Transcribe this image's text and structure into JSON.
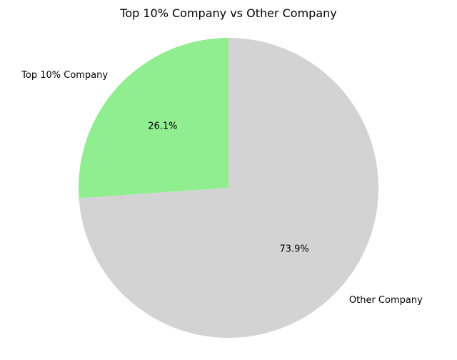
{
  "chart_data": {
    "type": "pie",
    "title": "Top 10% Company vs Other Company",
    "categories": [
      "Top 10% Company",
      "Other Company"
    ],
    "values": [
      26.1,
      73.9
    ],
    "value_labels": [
      "26.1%",
      "73.9%"
    ],
    "colors": [
      "#90ee90",
      "#d3d3d3"
    ],
    "start_angle_deg": 90,
    "direction": "counterclockwise",
    "legend": "none"
  }
}
